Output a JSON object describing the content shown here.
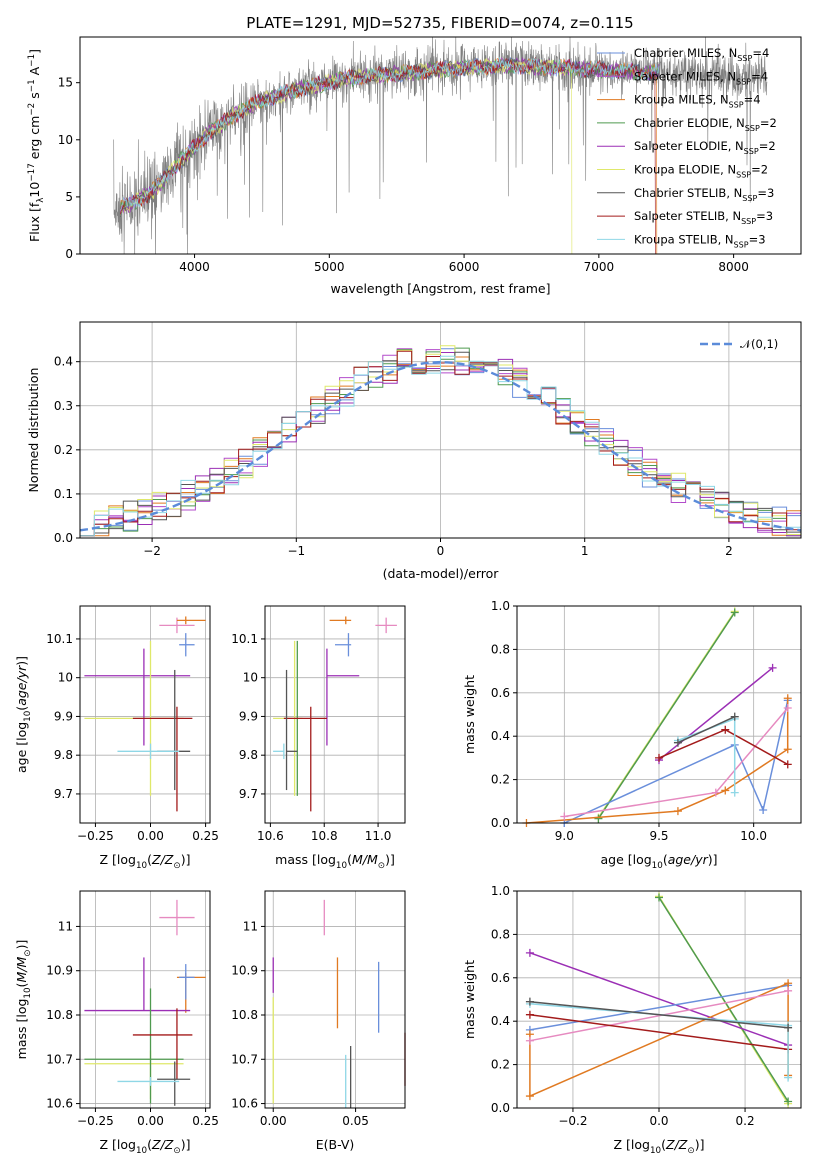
{
  "figure": {
    "title": "PLATE=1291, MJD=52735, FIBERID=0074, z=0.115"
  },
  "colors": {
    "data": "#808080",
    "Chabrier MILES": "#6a8fdb",
    "Salpeter MILES": "#b34ccb",
    "Kroupa MILES": "#e07a22",
    "Chabrier ELODIE": "#4f9a4f",
    "Salpeter ELODIE": "#9b2fb5",
    "Kroupa ELODIE": "#dfe86a",
    "Chabrier STELIB": "#555555",
    "Salpeter STELIB": "#a31b1b",
    "Kroupa STELIB": "#8fd7e6",
    "extra_pink": "#e68ac0",
    "normal": "#5b8bd9"
  },
  "chart_data": [
    {
      "id": "spectrum",
      "type": "line",
      "xlabel": "wavelength [Angstrom, rest frame]",
      "ylabel": "Flux [f_λ10^-17 erg cm^-2 s^-1 A^-1]",
      "xlim": [
        3150,
        8500
      ],
      "ylim": [
        0,
        19
      ],
      "xticks": [
        4000,
        5000,
        6000,
        7000,
        8000
      ],
      "yticks": [
        0,
        5,
        10,
        15
      ],
      "legend_position": "right",
      "legend": [
        {
          "name": "Chabrier MILES",
          "sub": "SSP",
          "n": "4"
        },
        {
          "name": "Salpeter MILES",
          "sub": "SSP",
          "n": "4"
        },
        {
          "name": "Kroupa MILES",
          "sub": "SSP",
          "n": "4"
        },
        {
          "name": "Chabrier ELODIE",
          "sub": "SSP",
          "n": "2"
        },
        {
          "name": "Salpeter ELODIE",
          "sub": "SSP",
          "n": "2"
        },
        {
          "name": "Kroupa ELODIE",
          "sub": "SSP",
          "n": "2"
        },
        {
          "name": "Chabrier STELIB",
          "sub": "SSP",
          "n": "3"
        },
        {
          "name": "Salpeter STELIB",
          "sub": "SSP",
          "n": "3"
        },
        {
          "name": "Kroupa STELIB",
          "sub": "SSP",
          "n": "3"
        }
      ],
      "continuum_x": [
        3400,
        3550,
        3700,
        3900,
        4100,
        4300,
        4500,
        4800,
        5100,
        5400,
        5700,
        6000,
        6300,
        6600,
        6900,
        7200,
        7500,
        7800,
        8050,
        8250
      ],
      "continuum_y": [
        3.8,
        4.5,
        5.6,
        8.2,
        10.5,
        12.2,
        13.5,
        14.5,
        15.3,
        15.7,
        16.0,
        16.3,
        16.5,
        16.4,
        16.2,
        16.0,
        15.9,
        15.8,
        15.6,
        15.4
      ],
      "data_range": [
        3400,
        8250
      ],
      "model_range": [
        3450,
        7450
      ],
      "model_drops": [
        {
          "model": "Kroupa ELODIE",
          "x": 6800
        },
        {
          "model": "Salpeter STELIB",
          "x": 7420
        },
        {
          "model": "Kroupa MILES",
          "x": 7430
        }
      ]
    },
    {
      "id": "residuals",
      "type": "step-histogram",
      "xlabel": "(data-model)/error",
      "ylabel": "Normed distribution",
      "xlim": [
        -2.5,
        2.5
      ],
      "ylim": [
        0,
        0.49
      ],
      "xticks": [
        -2,
        -1,
        0,
        1,
        2
      ],
      "xtick_labels": [
        "−2",
        "−1",
        "0",
        "1",
        "2"
      ],
      "yticks": [
        0.0,
        0.1,
        0.2,
        0.3,
        0.4
      ],
      "bin_width": 0.1,
      "curve": {
        "label": "𝒩(0,1)",
        "mean": 0,
        "sigma": 1
      },
      "legend_position": "top-right"
    },
    {
      "id": "age_vs_Z",
      "type": "errorbar",
      "xlabel": "Z [log10(Z/Z⊙)]",
      "ylabel": "age  [log10(age/yr)]",
      "xlim": [
        -0.32,
        0.27
      ],
      "ylim": [
        9.625,
        10.185
      ],
      "xticks": [
        -0.25,
        0.0,
        0.25
      ],
      "xtick_labels": [
        "−0.25",
        "0.00",
        "0.25"
      ],
      "yticks": [
        9.7,
        9.8,
        9.9,
        10.0,
        10.1
      ],
      "points": [
        {
          "c": "extra_pink",
          "x": 0.12,
          "y": 10.135,
          "xerr": [
            0.08,
            0.08
          ],
          "yerr": [
            0.02,
            0.02
          ]
        },
        {
          "c": "Kroupa MILES",
          "x": 0.16,
          "y": 10.148,
          "xerr": [
            0.04,
            0.09
          ],
          "yerr": [
            0.01,
            0.01
          ]
        },
        {
          "c": "Chabrier MILES",
          "x": 0.16,
          "y": 10.085,
          "xerr": [
            0.03,
            0.04
          ],
          "yerr": [
            0.03,
            0.03
          ]
        },
        {
          "c": "Salpeter ELODIE",
          "x": -0.03,
          "y": 10.005,
          "xerr": [
            0.27,
            0.21
          ],
          "yerr": [
            0.18,
            0.07
          ]
        },
        {
          "c": "Kroupa ELODIE",
          "x": 0.0,
          "y": 9.895,
          "xerr": [
            0.3,
            0.15
          ],
          "yerr": [
            0.2,
            0.2
          ]
        },
        {
          "c": "Salpeter STELIB",
          "x": 0.12,
          "y": 9.895,
          "xerr": [
            0.2,
            0.07
          ],
          "yerr": [
            0.24,
            0.03
          ]
        },
        {
          "c": "Chabrier STELIB",
          "x": 0.11,
          "y": 9.81,
          "xerr": [
            0.08,
            0.07
          ],
          "yerr": [
            0.1,
            0.21
          ]
        },
        {
          "c": "Kroupa STELIB",
          "x": 0.0,
          "y": 9.81,
          "xerr": [
            0.15,
            0.13
          ],
          "yerr": [
            0.02,
            0.02
          ]
        }
      ]
    },
    {
      "id": "age_vs_mass",
      "type": "errorbar",
      "xlabel": "mass [log10(M/M⊙)]",
      "ylabel": "",
      "xlim": [
        10.58,
        11.1
      ],
      "ylim": [
        9.625,
        10.185
      ],
      "xticks": [
        10.6,
        10.8,
        11.0
      ],
      "xtick_labels": [
        "10.6",
        "10.8",
        "11.0"
      ],
      "yticks": [
        9.7,
        9.8,
        9.9,
        10.0,
        10.1
      ],
      "points": [
        {
          "c": "extra_pink",
          "x": 11.03,
          "y": 10.135,
          "xerr": [
            0.04,
            0.04
          ],
          "yerr": [
            0.02,
            0.02
          ]
        },
        {
          "c": "Kroupa MILES",
          "x": 10.88,
          "y": 10.148,
          "xerr": [
            0.06,
            0.02
          ],
          "yerr": [
            0.01,
            0.01
          ]
        },
        {
          "c": "Chabrier MILES",
          "x": 10.89,
          "y": 10.085,
          "xerr": [
            0.05,
            0.01
          ],
          "yerr": [
            0.03,
            0.03
          ]
        },
        {
          "c": "Salpeter ELODIE",
          "x": 10.81,
          "y": 10.005,
          "xerr": [
            0.0,
            0.12
          ],
          "yerr": [
            0.18,
            0.07
          ]
        },
        {
          "c": "Kroupa ELODIE",
          "x": 10.69,
          "y": 9.895,
          "xerr": [
            0.08,
            0.03
          ],
          "yerr": [
            0.2,
            0.2
          ]
        },
        {
          "c": "Chabrier ELODIE",
          "x": 10.7,
          "y": 9.895,
          "xerr": [
            0.0,
            0.0
          ],
          "yerr": [
            0.2,
            0.2
          ]
        },
        {
          "c": "Salpeter STELIB",
          "x": 10.75,
          "y": 9.895,
          "xerr": [
            0.1,
            0.06
          ],
          "yerr": [
            0.24,
            0.03
          ]
        },
        {
          "c": "Chabrier STELIB",
          "x": 10.66,
          "y": 9.81,
          "xerr": [
            0.0,
            0.04
          ],
          "yerr": [
            0.1,
            0.21
          ]
        },
        {
          "c": "Kroupa STELIB",
          "x": 10.65,
          "y": 9.81,
          "xerr": [
            0.04,
            0.0
          ],
          "yerr": [
            0.02,
            0.02
          ]
        }
      ]
    },
    {
      "id": "weight_vs_age",
      "type": "line",
      "xlabel": "age  [log10(age/yr)]",
      "ylabel": "mass weight",
      "xlim": [
        8.75,
        10.25
      ],
      "ylim": [
        0,
        1.0
      ],
      "xticks": [
        9.0,
        9.5,
        10.0
      ],
      "xtick_labels": [
        "9.0",
        "9.5",
        "10.0"
      ],
      "yticks": [
        0.0,
        0.2,
        0.4,
        0.6,
        0.8,
        1.0
      ],
      "series": [
        {
          "c": "Kroupa ELODIE",
          "x": [
            9.18,
            9.9
          ],
          "y": [
            0.025,
            0.975
          ]
        },
        {
          "c": "Chabrier ELODIE",
          "x": [
            9.18,
            9.9
          ],
          "y": [
            0.02,
            0.97
          ]
        },
        {
          "c": "Salpeter ELODIE",
          "x": [
            9.5,
            10.1
          ],
          "y": [
            0.29,
            0.715
          ]
        },
        {
          "c": "Chabrier MILES",
          "x": [
            9.0,
            9.9,
            10.05,
            10.18
          ],
          "y": [
            0.0,
            0.36,
            0.06,
            0.565
          ]
        },
        {
          "c": "Kroupa MILES",
          "x": [
            8.8,
            9.6,
            9.85,
            10.18,
            10.18
          ],
          "y": [
            0.0,
            0.055,
            0.15,
            0.34,
            0.575
          ]
        },
        {
          "c": "extra_pink",
          "x": [
            9.0,
            9.8,
            10.18
          ],
          "y": [
            0.03,
            0.14,
            0.53
          ]
        },
        {
          "c": "Salpeter STELIB",
          "x": [
            9.5,
            9.85,
            10.18
          ],
          "y": [
            0.3,
            0.43,
            0.27
          ]
        },
        {
          "c": "Kroupa STELIB",
          "x": [
            9.6,
            9.9,
            9.9
          ],
          "y": [
            0.38,
            0.48,
            0.14
          ]
        },
        {
          "c": "Chabrier STELIB",
          "x": [
            9.6,
            9.9
          ],
          "y": [
            0.37,
            0.49
          ]
        }
      ]
    },
    {
      "id": "mass_vs_Z",
      "type": "errorbar",
      "xlabel": "Z [log10(Z/Z⊙)]",
      "ylabel": "mass [log10(M/M⊙)]",
      "xlim": [
        -0.32,
        0.27
      ],
      "ylim": [
        10.59,
        11.08
      ],
      "xticks": [
        -0.25,
        0.0,
        0.25
      ],
      "xtick_labels": [
        "−0.25",
        "0.00",
        "0.25"
      ],
      "yticks": [
        10.6,
        10.7,
        10.8,
        10.9,
        11.0
      ],
      "points": [
        {
          "c": "extra_pink",
          "x": 0.12,
          "y": 11.02,
          "xerr": [
            0.08,
            0.08
          ],
          "yerr": [
            0.04,
            0.04
          ]
        },
        {
          "c": "Kroupa MILES",
          "x": 0.16,
          "y": 10.885,
          "xerr": [
            0.04,
            0.09
          ],
          "yerr": [
            0.08,
            0.01
          ]
        },
        {
          "c": "Chabrier MILES",
          "x": 0.16,
          "y": 10.885,
          "xerr": [
            0.03,
            0.04
          ],
          "yerr": [
            0.05,
            0.03
          ]
        },
        {
          "c": "Salpeter ELODIE",
          "x": -0.03,
          "y": 10.81,
          "xerr": [
            0.27,
            0.21
          ],
          "yerr": [
            0.0,
            0.12
          ]
        },
        {
          "c": "Kroupa ELODIE",
          "x": 0.0,
          "y": 10.69,
          "xerr": [
            0.3,
            0.15
          ],
          "yerr": [
            0.08,
            0.03
          ]
        },
        {
          "c": "Chabrier ELODIE",
          "x": 0.0,
          "y": 10.7,
          "xerr": [
            0.3,
            0.15
          ],
          "yerr": [
            0.1,
            0.16
          ]
        },
        {
          "c": "Salpeter STELIB",
          "x": 0.12,
          "y": 10.755,
          "xerr": [
            0.2,
            0.07
          ],
          "yerr": [
            0.1,
            0.06
          ]
        },
        {
          "c": "Chabrier STELIB",
          "x": 0.11,
          "y": 10.655,
          "xerr": [
            0.08,
            0.07
          ],
          "yerr": [
            0.06,
            0.04
          ]
        },
        {
          "c": "Kroupa STELIB",
          "x": 0.0,
          "y": 10.65,
          "xerr": [
            0.15,
            0.13
          ],
          "yerr": [
            0.01,
            0.01
          ]
        }
      ]
    },
    {
      "id": "mass_vs_EBV",
      "type": "errorbar",
      "xlabel": "E(B-V)",
      "ylabel": "",
      "xlim": [
        -0.005,
        0.08
      ],
      "ylim": [
        10.59,
        11.08
      ],
      "xticks": [
        0.0,
        0.05
      ],
      "xtick_labels": [
        "0.00",
        "0.05"
      ],
      "yticks": [
        10.6,
        10.7,
        10.8,
        10.9,
        11.0
      ],
      "points": [
        {
          "c": "extra_pink",
          "x": 0.031,
          "y": 11.02,
          "xerr": [
            0,
            0
          ],
          "yerr": [
            0.04,
            0.04
          ]
        },
        {
          "c": "Kroupa MILES",
          "x": 0.039,
          "y": 10.85,
          "xerr": [
            0,
            0
          ],
          "yerr": [
            0.08,
            0.08
          ]
        },
        {
          "c": "Chabrier MILES",
          "x": 0.064,
          "y": 10.84,
          "xerr": [
            0,
            0
          ],
          "yerr": [
            0.08,
            0.08
          ]
        },
        {
          "c": "Salpeter ELODIE",
          "x": 0.0,
          "y": 10.89,
          "xerr": [
            0,
            0
          ],
          "yerr": [
            0.04,
            0.04
          ]
        },
        {
          "c": "Kroupa ELODIE",
          "x": 0.0,
          "y": 10.72,
          "xerr": [
            0,
            0
          ],
          "yerr": [
            0.12,
            0.12
          ]
        },
        {
          "c": "Salpeter STELIB",
          "x": 0.08,
          "y": 10.7,
          "xerr": [
            0,
            0
          ],
          "yerr": [
            0.06,
            0.06
          ]
        },
        {
          "c": "Chabrier STELIB",
          "x": 0.047,
          "y": 10.66,
          "xerr": [
            0,
            0
          ],
          "yerr": [
            0.07,
            0.07
          ]
        },
        {
          "c": "Kroupa STELIB",
          "x": 0.044,
          "y": 10.65,
          "xerr": [
            0,
            0
          ],
          "yerr": [
            0.06,
            0.06
          ]
        }
      ]
    },
    {
      "id": "weight_vs_Z",
      "type": "line",
      "xlabel": "Z [log10(Z/Z⊙)]",
      "ylabel": "mass weight",
      "xlim": [
        -0.33,
        0.33
      ],
      "ylim": [
        0,
        1.0
      ],
      "xticks": [
        -0.2,
        0.0,
        0.2
      ],
      "xtick_labels": [
        "−0.2",
        "0.0",
        "0.2"
      ],
      "yticks": [
        0.0,
        0.2,
        0.4,
        0.6,
        0.8,
        1.0
      ],
      "series": [
        {
          "c": "Kroupa ELODIE",
          "x": [
            0.0,
            0.3
          ],
          "y": [
            0.975,
            0.02
          ]
        },
        {
          "c": "Chabrier ELODIE",
          "x": [
            0.0,
            0.3
          ],
          "y": [
            0.97,
            0.03
          ]
        },
        {
          "c": "Salpeter ELODIE",
          "x": [
            -0.3,
            0.3
          ],
          "y": [
            0.715,
            0.29
          ]
        },
        {
          "c": "Chabrier MILES",
          "x": [
            -0.3,
            0.3
          ],
          "y": [
            0.36,
            0.565
          ]
        },
        {
          "c": "Kroupa MILES",
          "x": [
            -0.3,
            -0.3,
            0.3,
            0.3
          ],
          "y": [
            0.34,
            0.055,
            0.575,
            0.15
          ]
        },
        {
          "c": "extra_pink",
          "x": [
            -0.3,
            0.3
          ],
          "y": [
            0.31,
            0.54
          ]
        },
        {
          "c": "Salpeter STELIB",
          "x": [
            -0.3,
            0.3
          ],
          "y": [
            0.43,
            0.27
          ]
        },
        {
          "c": "Kroupa STELIB",
          "x": [
            -0.3,
            0.3,
            0.3
          ],
          "y": [
            0.48,
            0.38,
            0.14
          ]
        },
        {
          "c": "Chabrier STELIB",
          "x": [
            -0.3,
            0.3
          ],
          "y": [
            0.49,
            0.37
          ]
        }
      ]
    }
  ]
}
